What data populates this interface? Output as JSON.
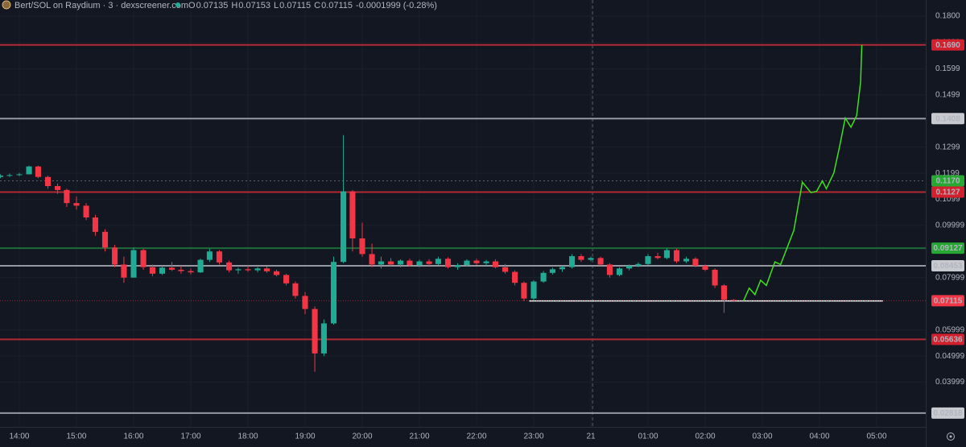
{
  "chart_data": {
    "type": "candlestick",
    "header": {
      "symbol": "Bert/SOL on Raydium · 3 · dexscreener.com",
      "ohlc": [
        {
          "key": "O",
          "value": "0.07135"
        },
        {
          "key": "H",
          "value": "0.07153"
        },
        {
          "key": "L",
          "value": "0.07115"
        },
        {
          "key": "C",
          "value": "0.07115"
        }
      ],
      "change": "-0.0001999 (-0.28%)"
    },
    "up_color": "#22ab94",
    "down_color": "#f23645",
    "grid": true,
    "xlim": [
      -0.338,
      15.859
    ],
    "ylim": [
      0.02292,
      0.18616
    ],
    "xticks": [
      {
        "value": 0,
        "label": "14:00"
      },
      {
        "value": 1,
        "label": "15:00"
      },
      {
        "value": 2,
        "label": "16:00"
      },
      {
        "value": 3,
        "label": "17:00"
      },
      {
        "value": 4,
        "label": "18:00"
      },
      {
        "value": 5,
        "label": "19:00"
      },
      {
        "value": 6,
        "label": "20:00"
      },
      {
        "value": 7,
        "label": "21:00"
      },
      {
        "value": 8,
        "label": "22:00"
      },
      {
        "value": 9,
        "label": "23:00"
      },
      {
        "value": 10,
        "label": "21"
      },
      {
        "value": 11,
        "label": "01:00"
      },
      {
        "value": 12,
        "label": "02:00"
      },
      {
        "value": 13,
        "label": "03:00"
      },
      {
        "value": 14,
        "label": "04:00"
      },
      {
        "value": 15,
        "label": "05:00"
      }
    ],
    "yticks": [
      {
        "value": 0.18,
        "label": "0.1800"
      },
      {
        "value": 0.1699,
        "label": "0.1699"
      },
      {
        "value": 0.1599,
        "label": "0.1599"
      },
      {
        "value": 0.1499,
        "label": "0.1499"
      },
      {
        "value": 0.1299,
        "label": "0.1299"
      },
      {
        "value": 0.1199,
        "label": "0.1199"
      },
      {
        "value": 0.1099,
        "label": "0.1099"
      },
      {
        "value": 0.09999,
        "label": "0.09999"
      },
      {
        "value": 0.07999,
        "label": "0.07999"
      },
      {
        "value": 0.05999,
        "label": "0.05999"
      },
      {
        "value": 0.04999,
        "label": "0.04999"
      },
      {
        "value": 0.03999,
        "label": "0.03999"
      }
    ],
    "levels": [
      {
        "value": 0.169,
        "label": "0.1690",
        "color": "#b22833"
      },
      {
        "value": 0.1408,
        "label": "0.1408",
        "color": "#9598a1"
      },
      {
        "value": 0.1127,
        "label": "0.1127",
        "color": "#b22833"
      },
      {
        "value": 0.09127,
        "label": "0.09127",
        "color": "#1e6b3a"
      },
      {
        "value": 0.08453,
        "label": "0.08453",
        "color": "#9598a1"
      },
      {
        "value": 0.05636,
        "label": "0.05636",
        "color": "#b22833"
      },
      {
        "value": 0.02818,
        "label": "0.02818",
        "color": "#9598a1"
      }
    ],
    "last_price": {
      "value": 0.07115,
      "label": "0.07115",
      "color": "#f23645"
    },
    "crosshair": {
      "x": 10.03,
      "y": 0.117,
      "label": "0.1170",
      "color": "#26a833"
    },
    "support": {
      "x": [
        8.92,
        15.11
      ],
      "value": 0.0711,
      "color": "#ffffff"
    },
    "projection": {
      "color": "#3fe01c",
      "x": [
        12.67,
        12.77,
        12.87,
        12.97,
        13.07,
        13.22,
        13.32,
        13.55,
        13.7,
        13.85,
        13.95,
        14.05,
        14.12,
        14.25,
        14.35,
        14.45,
        14.55,
        14.65,
        14.72,
        14.74
      ],
      "values": [
        0.0711,
        0.076,
        0.0735,
        0.079,
        0.077,
        0.086,
        0.085,
        0.098,
        0.1165,
        0.1125,
        0.113,
        0.117,
        0.114,
        0.12,
        0.13,
        0.141,
        0.1375,
        0.142,
        0.155,
        0.169
      ]
    },
    "candles": {
      "x": [
        -0.33,
        -0.17,
        0,
        0.17,
        0.33,
        0.5,
        0.67,
        0.83,
        1,
        1.17,
        1.33,
        1.5,
        1.67,
        1.83,
        2,
        2.17,
        2.33,
        2.5,
        2.67,
        2.83,
        3,
        3.17,
        3.33,
        3.5,
        3.67,
        3.83,
        4,
        4.17,
        4.33,
        4.5,
        4.67,
        4.83,
        5,
        5.17,
        5.33,
        5.5,
        5.67,
        5.83,
        6,
        6.17,
        6.33,
        6.5,
        6.67,
        6.83,
        7,
        7.17,
        7.33,
        7.5,
        7.67,
        7.83,
        8,
        8.17,
        8.33,
        8.5,
        8.67,
        8.83,
        9,
        9.17,
        9.33,
        9.5,
        9.67,
        9.83,
        10,
        10.17,
        10.33,
        10.5,
        10.67,
        10.83,
        11,
        11.17,
        11.33,
        11.5,
        11.67,
        11.83,
        12,
        12.17,
        12.33,
        12.5
      ],
      "open": [
        0.1185,
        0.119,
        0.1192,
        0.1195,
        0.1225,
        0.1185,
        0.115,
        0.1135,
        0.1085,
        0.1075,
        0.103,
        0.0975,
        0.0915,
        0.085,
        0.08,
        0.0905,
        0.084,
        0.0815,
        0.0838,
        0.083,
        0.0825,
        0.082,
        0.0868,
        0.09,
        0.0858,
        0.0828,
        0.0832,
        0.0828,
        0.0835,
        0.0824,
        0.081,
        0.0778,
        0.073,
        0.068,
        0.051,
        0.0625,
        0.086,
        0.113,
        0.095,
        0.089,
        0.085,
        0.0862,
        0.085,
        0.0865,
        0.0848,
        0.0862,
        0.0852,
        0.0872,
        0.084,
        0.0848,
        0.0865,
        0.0855,
        0.0862,
        0.084,
        0.0822,
        0.078,
        0.072,
        0.0785,
        0.0818,
        0.0832,
        0.084,
        0.0882,
        0.0868,
        0.0875,
        0.085,
        0.081,
        0.0835,
        0.0845,
        0.0852,
        0.0882,
        0.0875,
        0.0905,
        0.0862,
        0.0872,
        0.0845,
        0.083,
        0.077,
        0.0715
      ],
      "high": [
        0.1195,
        0.1198,
        0.12,
        0.1228,
        0.1228,
        0.119,
        0.116,
        0.114,
        0.111,
        0.1085,
        0.104,
        0.0985,
        0.0925,
        0.088,
        0.0915,
        0.091,
        0.085,
        0.0845,
        0.086,
        0.0845,
        0.0835,
        0.0872,
        0.091,
        0.0905,
        0.0865,
        0.0838,
        0.0845,
        0.084,
        0.0842,
        0.083,
        0.0815,
        0.0785,
        0.0745,
        0.069,
        0.064,
        0.088,
        0.1345,
        0.1135,
        0.101,
        0.093,
        0.088,
        0.0875,
        0.087,
        0.0872,
        0.0868,
        0.087,
        0.088,
        0.0878,
        0.0855,
        0.087,
        0.0872,
        0.0868,
        0.087,
        0.0852,
        0.0828,
        0.0785,
        0.079,
        0.0825,
        0.0838,
        0.0845,
        0.089,
        0.089,
        0.088,
        0.088,
        0.0855,
        0.084,
        0.085,
        0.0858,
        0.089,
        0.0895,
        0.0912,
        0.091,
        0.088,
        0.0878,
        0.085,
        0.0835,
        0.0775,
        0.0718
      ],
      "low": [
        0.118,
        0.1185,
        0.1188,
        0.1195,
        0.118,
        0.114,
        0.112,
        0.107,
        0.106,
        0.102,
        0.096,
        0.09,
        0.084,
        0.078,
        0.08,
        0.083,
        0.0805,
        0.081,
        0.0825,
        0.0815,
        0.0812,
        0.0818,
        0.086,
        0.085,
        0.082,
        0.0815,
        0.0822,
        0.082,
        0.0818,
        0.0805,
        0.077,
        0.072,
        0.066,
        0.044,
        0.05,
        0.062,
        0.0855,
        0.09,
        0.088,
        0.084,
        0.0835,
        0.0845,
        0.084,
        0.0842,
        0.084,
        0.0845,
        0.0848,
        0.0835,
        0.083,
        0.0842,
        0.0848,
        0.0845,
        0.0835,
        0.0815,
        0.077,
        0.071,
        0.0712,
        0.078,
        0.0812,
        0.0822,
        0.0835,
        0.086,
        0.0862,
        0.0845,
        0.08,
        0.0805,
        0.0828,
        0.084,
        0.0848,
        0.087,
        0.087,
        0.0855,
        0.0855,
        0.084,
        0.0825,
        0.076,
        0.0665,
        0.071
      ],
      "close": [
        0.119,
        0.1192,
        0.1195,
        0.1225,
        0.1185,
        0.115,
        0.1135,
        0.1085,
        0.1075,
        0.103,
        0.0975,
        0.0915,
        0.085,
        0.08,
        0.0905,
        0.084,
        0.0815,
        0.0838,
        0.083,
        0.0825,
        0.082,
        0.0868,
        0.09,
        0.0858,
        0.0828,
        0.0832,
        0.0828,
        0.0835,
        0.0824,
        0.081,
        0.0778,
        0.073,
        0.068,
        0.051,
        0.0625,
        0.086,
        0.113,
        0.095,
        0.089,
        0.085,
        0.0862,
        0.085,
        0.0865,
        0.0848,
        0.0862,
        0.0852,
        0.0872,
        0.084,
        0.0848,
        0.0865,
        0.0855,
        0.0862,
        0.084,
        0.0822,
        0.078,
        0.072,
        0.0785,
        0.0818,
        0.0832,
        0.084,
        0.0882,
        0.0868,
        0.0875,
        0.085,
        0.081,
        0.0835,
        0.0845,
        0.0852,
        0.0882,
        0.0875,
        0.0905,
        0.0862,
        0.0872,
        0.0845,
        0.083,
        0.077,
        0.0715,
        0.0712
      ]
    }
  }
}
